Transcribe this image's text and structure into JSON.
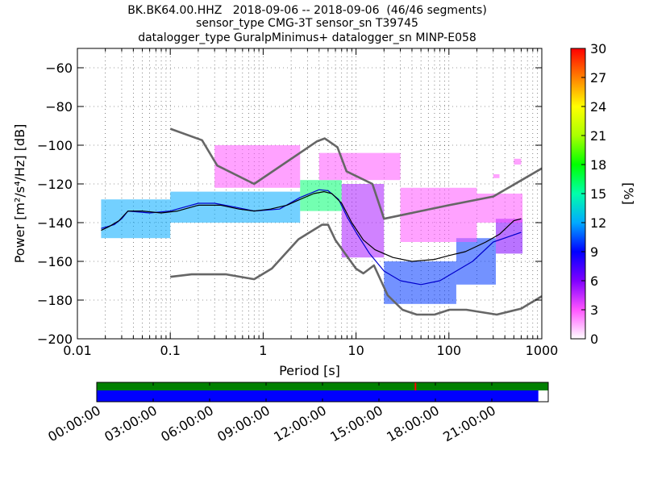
{
  "chart_data": {
    "type": "heatmap",
    "title_lines": [
      "BK.BK64.00.HHZ   2018-09-06 -- 2018-09-06  (46/46 segments)",
      "sensor_type CMG-3T sensor_sn T39745",
      "datalogger_type GuralpMinimus+ datalogger_sn MINP-E058"
    ],
    "xlabel": "Period [s]",
    "ylabel": "Power [m²/s⁴/Hz] [dB]",
    "xscale": "log",
    "xlim": [
      0.01,
      1000
    ],
    "ylim": [
      -200,
      -50
    ],
    "x_ticks": [
      {
        "v": 0.01,
        "label": "0.01"
      },
      {
        "v": 0.1,
        "label": "0.1"
      },
      {
        "v": 1,
        "label": "1"
      },
      {
        "v": 10,
        "label": "10"
      },
      {
        "v": 100,
        "label": "100"
      },
      {
        "v": 1000,
        "label": "1000"
      }
    ],
    "y_ticks": [
      {
        "v": -60,
        "label": "−60"
      },
      {
        "v": -80,
        "label": "−80"
      },
      {
        "v": -100,
        "label": "−100"
      },
      {
        "v": -120,
        "label": "−120"
      },
      {
        "v": -140,
        "label": "−140"
      },
      {
        "v": -160,
        "label": "−160"
      },
      {
        "v": -180,
        "label": "−180"
      },
      {
        "v": -200,
        "label": "−200"
      }
    ],
    "grid": true,
    "colorbar": {
      "label": "[%]",
      "range": [
        0,
        30
      ],
      "ticks": [
        {
          "v": 0,
          "label": "0"
        },
        {
          "v": 3,
          "label": "3"
        },
        {
          "v": 6,
          "label": "6"
        },
        {
          "v": 9,
          "label": "9"
        },
        {
          "v": 12,
          "label": "12"
        },
        {
          "v": 15,
          "label": "15"
        },
        {
          "v": 18,
          "label": "18"
        },
        {
          "v": 21,
          "label": "21"
        },
        {
          "v": 24,
          "label": "24"
        },
        {
          "v": 27,
          "label": "27"
        },
        {
          "v": 30,
          "label": "30"
        }
      ]
    },
    "noise_models": {
      "nhnm": [
        [
          0.1,
          -91.5
        ],
        [
          0.22,
          -97.4
        ],
        [
          0.32,
          -110.5
        ],
        [
          0.8,
          -120
        ],
        [
          3.8,
          -98
        ],
        [
          4.6,
          -96.5
        ],
        [
          6.3,
          -101
        ],
        [
          7.9,
          -113.5
        ],
        [
          15,
          -120
        ],
        [
          20,
          -138
        ],
        [
          100,
          -131
        ],
        [
          300,
          -126.5
        ],
        [
          1000,
          -112
        ]
      ],
      "nlnm": [
        [
          0.1,
          -168
        ],
        [
          0.17,
          -166.7
        ],
        [
          0.4,
          -166.7
        ],
        [
          0.8,
          -169.2
        ],
        [
          1.24,
          -163.7
        ],
        [
          2.4,
          -148.6
        ],
        [
          4.3,
          -141.1
        ],
        [
          5,
          -141.1
        ],
        [
          6,
          -149
        ],
        [
          10,
          -163.8
        ],
        [
          12,
          -166.2
        ],
        [
          15.6,
          -162.1
        ],
        [
          21.9,
          -177.5
        ],
        [
          31.6,
          -185
        ],
        [
          45,
          -187.5
        ],
        [
          70,
          -187.5
        ],
        [
          101,
          -185
        ],
        [
          154,
          -185
        ],
        [
          328,
          -187.5
        ],
        [
          600,
          -184.4
        ],
        [
          1000,
          -178
        ]
      ]
    },
    "mean_curve": [
      [
        0.018,
        -144
      ],
      [
        0.022,
        -142
      ],
      [
        0.028,
        -139
      ],
      [
        0.035,
        -134
      ],
      [
        0.05,
        -134
      ],
      [
        0.08,
        -135
      ],
      [
        0.12,
        -134
      ],
      [
        0.2,
        -131
      ],
      [
        0.35,
        -131
      ],
      [
        0.55,
        -133
      ],
      [
        0.8,
        -134
      ],
      [
        1.2,
        -133
      ],
      [
        1.8,
        -131
      ],
      [
        2.5,
        -128
      ],
      [
        3.5,
        -125
      ],
      [
        4.5,
        -124
      ],
      [
        5.5,
        -125
      ],
      [
        7,
        -130
      ],
      [
        9,
        -140
      ],
      [
        12,
        -149
      ],
      [
        16,
        -154
      ],
      [
        25,
        -158
      ],
      [
        40,
        -160
      ],
      [
        70,
        -159
      ],
      [
        100,
        -157
      ],
      [
        150,
        -155
      ],
      [
        250,
        -150
      ],
      [
        350,
        -146
      ],
      [
        500,
        -139
      ],
      [
        600,
        -138
      ]
    ],
    "mode_curve": [
      [
        0.018,
        -143
      ],
      [
        0.025,
        -141
      ],
      [
        0.03,
        -138
      ],
      [
        0.035,
        -134
      ],
      [
        0.06,
        -135
      ],
      [
        0.1,
        -134
      ],
      [
        0.2,
        -130
      ],
      [
        0.3,
        -130
      ],
      [
        0.5,
        -132
      ],
      [
        0.8,
        -134
      ],
      [
        1.5,
        -133
      ],
      [
        2.5,
        -127
      ],
      [
        4,
        -123
      ],
      [
        5,
        -123.5
      ],
      [
        6.5,
        -128
      ],
      [
        8,
        -137
      ],
      [
        10,
        -145
      ],
      [
        14,
        -156
      ],
      [
        20,
        -165
      ],
      [
        30,
        -170
      ],
      [
        50,
        -172
      ],
      [
        80,
        -170
      ],
      [
        120,
        -165
      ],
      [
        180,
        -160
      ],
      [
        300,
        -150
      ],
      [
        600,
        -145
      ]
    ],
    "psd_bands": [
      {
        "x0": 0.018,
        "x1": 0.1,
        "y0": -148,
        "y1": -128,
        "value": 12
      },
      {
        "x0": 0.1,
        "x1": 2.5,
        "y0": -140,
        "y1": -124,
        "value": 12
      },
      {
        "x0": 2.5,
        "x1": 7,
        "y0": -134,
        "y1": -118,
        "value": 16
      },
      {
        "x0": 7,
        "x1": 20,
        "y0": -158,
        "y1": -120,
        "value": 5
      },
      {
        "x0": 20,
        "x1": 120,
        "y0": -182,
        "y1": -160,
        "value": 10
      },
      {
        "x0": 120,
        "x1": 320,
        "y0": -172,
        "y1": -148,
        "value": 10
      },
      {
        "x0": 320,
        "x1": 620,
        "y0": -156,
        "y1": -138,
        "value": 6
      },
      {
        "x0": 0.3,
        "x1": 2.5,
        "y0": -122,
        "y1": -100,
        "value": 3
      },
      {
        "x0": 4,
        "x1": 30,
        "y0": -118,
        "y1": -104,
        "value": 3
      },
      {
        "x0": 30,
        "x1": 200,
        "y0": -150,
        "y1": -122,
        "value": 3
      },
      {
        "x0": 200,
        "x1": 620,
        "y0": -140,
        "y1": -125,
        "value": 3
      },
      {
        "x0": 500,
        "x1": 600,
        "y0": -110,
        "y1": -107,
        "value": 3
      },
      {
        "x0": 300,
        "x1": 350,
        "y0": -117,
        "y1": -115,
        "value": 3
      }
    ],
    "timeline": {
      "ticks": [
        "00:00:00",
        "03:00:00",
        "06:00:00",
        "09:00:00",
        "12:00:00",
        "15:00:00",
        "18:00:00",
        "21:00:00"
      ],
      "data_coverage_fraction": 1.0,
      "psd_coverage_fraction": 0.978,
      "gap_marker_hour": 16.9,
      "colors": {
        "data": "#008000",
        "psd": "#0000ff",
        "gap": "#ff0000"
      }
    }
  }
}
